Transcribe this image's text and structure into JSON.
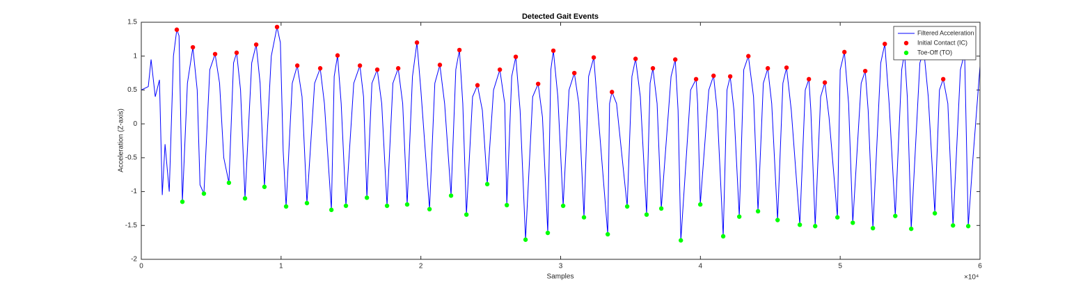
{
  "chart_data": {
    "type": "line",
    "title": "Detected Gait Events",
    "xlabel": "Samples",
    "ylabel": "Acceleration (Z-axis)",
    "x_exponent_label": "×10⁴",
    "xlim": [
      0,
      60000
    ],
    "ylim": [
      -2,
      1.5
    ],
    "xticks": [
      {
        "value": 0,
        "label": "0"
      },
      {
        "value": 10000,
        "label": "1"
      },
      {
        "value": 20000,
        "label": "2"
      },
      {
        "value": 30000,
        "label": "3"
      },
      {
        "value": 40000,
        "label": "4"
      },
      {
        "value": 50000,
        "label": "5"
      },
      {
        "value": 60000,
        "label": "6"
      }
    ],
    "yticks": [
      -2,
      -1.5,
      -1,
      -0.5,
      0,
      0.5,
      1,
      1.5
    ],
    "grid": false,
    "legend": "northeast",
    "series": [
      {
        "name": "Filtered Acceleration",
        "color": "#0000ff",
        "mark": "line",
        "x": [
          0,
          500,
          700,
          1000,
          1300,
          1500,
          1700,
          2000,
          2300,
          2540,
          2700,
          2940,
          3300,
          3690,
          4000,
          4200,
          4480,
          4900,
          5280,
          5600,
          5900,
          6270,
          6600,
          6820,
          7100,
          7420,
          7900,
          8220,
          8500,
          8810,
          9300,
          9710,
          9950,
          10150,
          10360,
          10800,
          11160,
          11500,
          11850,
          12400,
          12800,
          13100,
          13600,
          13800,
          14040,
          14300,
          14640,
          15200,
          15640,
          15900,
          16140,
          16500,
          16880,
          17200,
          17580,
          18000,
          18380,
          18700,
          19020,
          19400,
          19720,
          20000,
          20620,
          21000,
          21360,
          21700,
          22160,
          22500,
          22760,
          23000,
          23260,
          23700,
          24050,
          24400,
          24750,
          25200,
          25650,
          26000,
          26150,
          26500,
          26790,
          27100,
          27490,
          28000,
          28390,
          28700,
          29080,
          29300,
          29480,
          29800,
          30180,
          30600,
          30980,
          31300,
          31670,
          32000,
          32370,
          32700,
          33370,
          33500,
          33670,
          34000,
          34760,
          35100,
          35360,
          35700,
          36150,
          36400,
          36600,
          36900,
          37200,
          37900,
          38200,
          38400,
          38600,
          39300,
          39690,
          39800,
          39990,
          40600,
          40940,
          41200,
          41630,
          41900,
          42130,
          42400,
          42780,
          43100,
          43430,
          43800,
          44120,
          44500,
          44820,
          45100,
          45520,
          45900,
          46160,
          46500,
          47110,
          47500,
          47760,
          47900,
          48210,
          48600,
          48900,
          49200,
          49800,
          50000,
          50300,
          50600,
          50900,
          51500,
          51790,
          52000,
          52340,
          52900,
          53190,
          53500,
          53940,
          54400,
          54600,
          54800,
          55080,
          55700,
          55980,
          56300,
          56770,
          57100,
          57370,
          57700,
          58070,
          58600,
          58900,
          59160,
          59500,
          60000
        ],
        "values": [
          0.5,
          0.55,
          0.95,
          0.4,
          0.65,
          -1.05,
          -0.3,
          -1.0,
          1.0,
          1.39,
          1.3,
          -1.15,
          0.6,
          1.13,
          0.5,
          -0.9,
          -1.03,
          0.8,
          1.03,
          0.6,
          -0.5,
          -0.87,
          0.9,
          1.05,
          0.5,
          -1.1,
          0.9,
          1.17,
          0.6,
          -0.93,
          1.0,
          1.43,
          1.2,
          -0.4,
          -1.22,
          0.6,
          0.86,
          0.4,
          -1.17,
          0.6,
          0.82,
          0.3,
          -1.27,
          0.7,
          1.01,
          0.3,
          -1.21,
          0.6,
          0.86,
          0.4,
          -1.09,
          0.6,
          0.8,
          0.3,
          -1.21,
          0.6,
          0.82,
          0.3,
          -1.19,
          0.7,
          1.2,
          0.5,
          -1.26,
          0.6,
          0.87,
          0.3,
          -1.06,
          0.8,
          1.09,
          0.3,
          -1.34,
          0.4,
          0.57,
          0.2,
          -0.89,
          0.5,
          0.8,
          0.3,
          -1.2,
          0.7,
          0.99,
          0.2,
          -1.71,
          0.4,
          0.59,
          0.1,
          -1.61,
          0.8,
          1.08,
          0.4,
          -1.21,
          0.5,
          0.75,
          0.3,
          -1.38,
          0.7,
          0.98,
          0.1,
          -1.63,
          0.3,
          0.47,
          0.3,
          -1.22,
          0.7,
          0.96,
          0.4,
          -1.34,
          0.6,
          0.82,
          0.3,
          -1.25,
          0.7,
          0.95,
          0.2,
          -1.72,
          0.5,
          0.66,
          0.3,
          -1.19,
          0.5,
          0.71,
          0.2,
          -1.66,
          0.5,
          0.7,
          0.2,
          -1.37,
          0.8,
          1.0,
          0.4,
          -1.29,
          0.6,
          0.82,
          0.3,
          -1.42,
          0.6,
          0.83,
          0.2,
          -1.49,
          0.5,
          0.66,
          0.2,
          -1.51,
          0.4,
          0.61,
          0.1,
          -1.38,
          0.8,
          1.06,
          0.3,
          -1.46,
          0.6,
          0.78,
          0.2,
          -1.54,
          0.9,
          1.18,
          0.3,
          -1.36,
          0.8,
          1.05,
          0.4,
          -1.55,
          0.9,
          1.09,
          0.4,
          -1.32,
          0.5,
          0.66,
          0.3,
          -1.5,
          0.8,
          1.05,
          -1.51,
          -0.5,
          0.85
        ]
      },
      {
        "name": "Initial Contact (IC)",
        "color": "#ff0000",
        "mark": "dot",
        "x": [
          2540,
          3690,
          5280,
          6820,
          8220,
          9710,
          11160,
          12800,
          14040,
          15640,
          16880,
          18380,
          19720,
          21360,
          22760,
          24050,
          25650,
          26790,
          28390,
          29480,
          30980,
          32370,
          33670,
          35360,
          36600,
          38200,
          39690,
          40940,
          42130,
          43430,
          44820,
          46160,
          47760,
          48900,
          50300,
          51790,
          53190,
          55980,
          57370
        ],
        "values": [
          1.39,
          1.13,
          1.03,
          1.05,
          1.17,
          1.43,
          0.86,
          0.82,
          1.01,
          0.86,
          0.8,
          0.82,
          1.2,
          0.87,
          1.09,
          0.57,
          0.8,
          0.99,
          0.59,
          1.08,
          0.75,
          0.98,
          0.47,
          0.96,
          0.82,
          0.95,
          0.66,
          0.71,
          0.7,
          1.0,
          0.82,
          0.83,
          0.66,
          0.61,
          1.06,
          0.78,
          1.18,
          1.09,
          0.66
        ]
      },
      {
        "name": "Toe-Off (TO)",
        "color": "#00ff00",
        "mark": "dot",
        "x": [
          2940,
          4480,
          6270,
          7420,
          8810,
          10360,
          11850,
          13600,
          14640,
          16140,
          17580,
          19020,
          20620,
          22160,
          23260,
          24750,
          26150,
          27490,
          29080,
          30180,
          31670,
          33370,
          34760,
          36150,
          37200,
          38600,
          39990,
          41630,
          42780,
          44120,
          45520,
          47110,
          48210,
          49800,
          50900,
          52340,
          53940,
          55080,
          56770,
          58070,
          59160
        ],
        "values": [
          -1.15,
          -1.03,
          -0.87,
          -1.1,
          -0.93,
          -1.22,
          -1.17,
          -1.27,
          -1.21,
          -1.09,
          -1.21,
          -1.19,
          -1.26,
          -1.06,
          -1.34,
          -0.89,
          -1.2,
          -1.71,
          -1.61,
          -1.21,
          -1.38,
          -1.63,
          -1.22,
          -1.34,
          -1.25,
          -1.72,
          -1.19,
          -1.66,
          -1.37,
          -1.29,
          -1.42,
          -1.49,
          -1.51,
          -1.38,
          -1.46,
          -1.54,
          -1.36,
          -1.55,
          -1.32,
          -1.5,
          -1.51
        ]
      }
    ]
  }
}
